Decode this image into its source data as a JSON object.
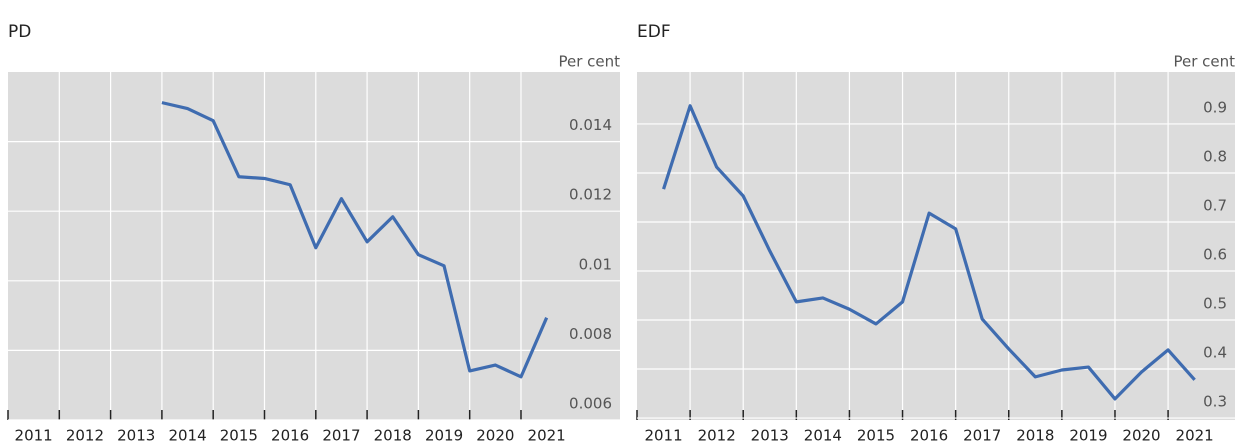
{
  "chart_data": [
    {
      "type": "line",
      "title": "PD",
      "y_label": "Per cent",
      "x": [
        2014,
        2014.5,
        2015,
        2015.5,
        2016,
        2016.5,
        2017,
        2017.5,
        2018,
        2018.5,
        2019,
        2019.5,
        2020,
        2020.5,
        2021,
        2021.5
      ],
      "series": [
        {
          "name": "PD",
          "color": "#3f6cb0",
          "values": [
            0.01512,
            0.01495,
            0.0146,
            0.01299,
            0.01294,
            0.01276,
            0.01095,
            0.01236,
            0.01112,
            0.01184,
            0.01075,
            0.01043,
            0.00741,
            0.00758,
            0.00724,
            0.00894
          ]
        }
      ],
      "xlim": [
        2011,
        2022.93
      ],
      "xticks": [
        2011,
        2012,
        2013,
        2014,
        2015,
        2016,
        2017,
        2018,
        2019,
        2020,
        2021
      ],
      "ylim": [
        0.006,
        0.016
      ],
      "yticks": [
        0.006,
        0.008,
        0.01,
        0.012,
        0.014
      ],
      "grid": true
    },
    {
      "type": "line",
      "title": "EDF",
      "y_label": "Per cent",
      "x": [
        2011.5,
        2012,
        2012.5,
        2013,
        2013.5,
        2014,
        2014.5,
        2015,
        2015.5,
        2016,
        2016.5,
        2017,
        2017.5,
        2018,
        2018.5,
        2019,
        2019.5,
        2020,
        2020.5,
        2021,
        2021.5
      ],
      "series": [
        {
          "name": "EDF",
          "color": "#3f6cb0",
          "values": [
            0.767,
            0.937,
            0.812,
            0.753,
            0.641,
            0.537,
            0.545,
            0.522,
            0.492,
            0.537,
            0.718,
            0.686,
            0.502,
            0.441,
            0.384,
            0.398,
            0.404,
            0.339,
            0.394,
            0.439,
            0.378
          ]
        }
      ],
      "xlim": [
        2011,
        2022.26
      ],
      "xticks": [
        2011,
        2012,
        2013,
        2014,
        2015,
        2016,
        2017,
        2018,
        2019,
        2020,
        2021
      ],
      "ylim": [
        0.296,
        1.006
      ],
      "yticks": [
        0.3,
        0.4,
        0.5,
        0.6,
        0.7,
        0.8,
        0.9
      ],
      "grid": true
    }
  ]
}
